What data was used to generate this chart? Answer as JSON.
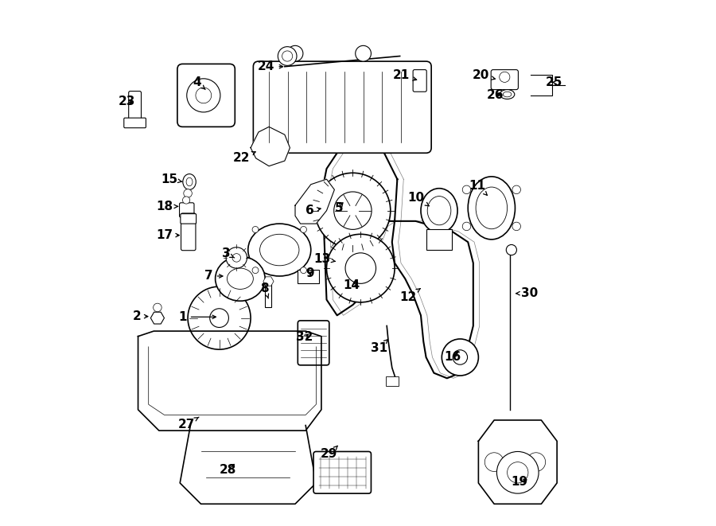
{
  "title": "",
  "bg_color": "#ffffff",
  "line_color": "#000000",
  "fig_width": 9.0,
  "fig_height": 6.61,
  "label_fontsize": 11,
  "label_positions": {
    "1": [
      0.165,
      0.397,
      0.235,
      0.397
    ],
    "2": [
      0.078,
      0.398,
      0.105,
      0.398
    ],
    "3": [
      0.248,
      0.518,
      0.268,
      0.508
    ],
    "4": [
      0.193,
      0.845,
      0.212,
      0.828
    ],
    "5": [
      0.463,
      0.605,
      0.475,
      0.62
    ],
    "6": [
      0.408,
      0.6,
      0.435,
      0.605
    ],
    "7": [
      0.215,
      0.475,
      0.248,
      0.475
    ],
    "8": [
      0.322,
      0.452,
      0.329,
      0.432
    ],
    "9": [
      0.408,
      0.481,
      0.41,
      0.475
    ],
    "10": [
      0.611,
      0.625,
      0.637,
      0.608
    ],
    "11": [
      0.728,
      0.648,
      0.748,
      0.628
    ],
    "12": [
      0.595,
      0.435,
      0.62,
      0.452
    ],
    "13": [
      0.432,
      0.508,
      0.462,
      0.502
    ],
    "14": [
      0.487,
      0.458,
      0.505,
      0.465
    ],
    "15": [
      0.14,
      0.66,
      0.165,
      0.655
    ],
    "16": [
      0.68,
      0.32,
      0.695,
      0.333
    ],
    "17": [
      0.13,
      0.553,
      0.165,
      0.553
    ],
    "18": [
      0.13,
      0.608,
      0.162,
      0.608
    ],
    "19": [
      0.808,
      0.082,
      0.828,
      0.088
    ],
    "20": [
      0.735,
      0.858,
      0.768,
      0.85
    ],
    "21": [
      0.583,
      0.858,
      0.618,
      0.848
    ],
    "22": [
      0.278,
      0.7,
      0.31,
      0.715
    ],
    "23": [
      0.058,
      0.808,
      0.075,
      0.805
    ],
    "24": [
      0.325,
      0.875,
      0.363,
      0.875
    ],
    "25": [
      0.875,
      0.845,
      0.87,
      0.845
    ],
    "26": [
      0.762,
      0.82,
      0.778,
      0.822
    ],
    "27": [
      0.172,
      0.192,
      0.2,
      0.208
    ],
    "28": [
      0.252,
      0.105,
      0.268,
      0.12
    ],
    "29": [
      0.445,
      0.135,
      0.462,
      0.152
    ],
    "30": [
      0.828,
      0.442,
      0.8,
      0.442
    ],
    "31": [
      0.54,
      0.338,
      0.558,
      0.355
    ],
    "32": [
      0.398,
      0.358,
      0.41,
      0.368
    ]
  }
}
